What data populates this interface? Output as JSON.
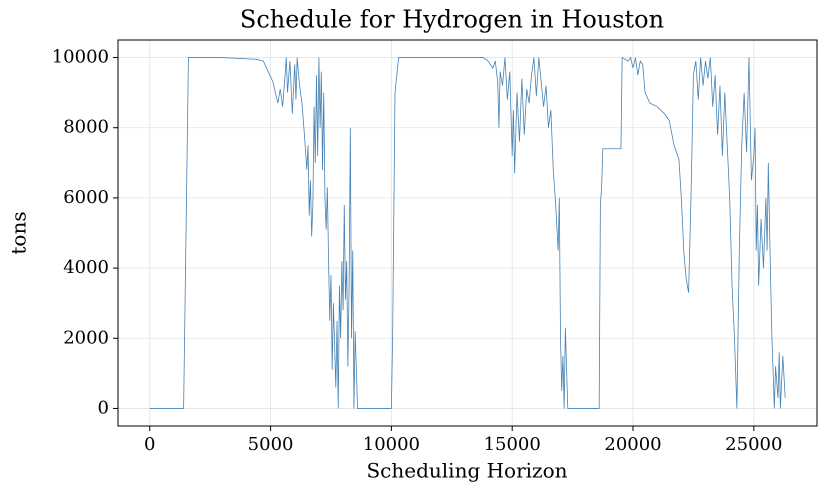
{
  "chart_data": {
    "type": "line",
    "title": "Schedule for Hydrogen in Houston",
    "xlabel": "Scheduling Horizon",
    "ylabel": "tons",
    "color": "#4682b4",
    "grid": true,
    "xlim": [
      -1315,
      27615
    ],
    "ylim": [
      -500,
      10500
    ],
    "xticks": [
      0,
      5000,
      10000,
      15000,
      20000,
      25000
    ],
    "yticks": [
      0,
      2000,
      4000,
      6000,
      8000,
      10000
    ],
    "x": [
      0,
      1400,
      1500,
      1600,
      3000,
      4400,
      4700,
      4900,
      5100,
      5300,
      5400,
      5500,
      5600,
      5650,
      5700,
      5800,
      5900,
      6000,
      6050,
      6100,
      6200,
      6300,
      6400,
      6500,
      6550,
      6600,
      6650,
      6700,
      6750,
      6800,
      6850,
      6900,
      6950,
      7000,
      7050,
      7100,
      7150,
      7200,
      7250,
      7300,
      7350,
      7400,
      7450,
      7500,
      7550,
      7600,
      7650,
      7700,
      7750,
      7800,
      7850,
      7900,
      7950,
      8000,
      8050,
      8100,
      8150,
      8200,
      8250,
      8300,
      8350,
      8400,
      8450,
      8500,
      8600,
      10000,
      10050,
      10150,
      10300,
      13800,
      14000,
      14200,
      14300,
      14400,
      14450,
      14500,
      14600,
      14700,
      14800,
      14900,
      15000,
      15050,
      15100,
      15200,
      15300,
      15400,
      15500,
      15600,
      15700,
      15800,
      15900,
      16000,
      16100,
      16200,
      16300,
      16400,
      16500,
      16600,
      16700,
      16800,
      16900,
      16950,
      17000,
      17050,
      17100,
      17150,
      17200,
      17300,
      18600,
      18650,
      18700,
      18750,
      19500,
      19550,
      19800,
      19900,
      20000,
      20100,
      20200,
      20300,
      20400,
      20500,
      20700,
      21000,
      21300,
      21500,
      21700,
      21900,
      22000,
      22100,
      22200,
      22300,
      22400,
      22500,
      22600,
      22700,
      22800,
      22900,
      23000,
      23100,
      23200,
      23300,
      23400,
      23500,
      23600,
      23700,
      23800,
      23900,
      24000,
      24100,
      24200,
      24300,
      24400,
      24500,
      24600,
      24700,
      24800,
      24900,
      25000,
      25050,
      25100,
      25150,
      25200,
      25300,
      25400,
      25500,
      25550,
      25600,
      25700,
      25750,
      25800,
      25850,
      25900,
      26000,
      26050,
      26100,
      26200,
      26300
    ],
    "values": [
      0,
      0,
      5000,
      10000,
      10000,
      9950,
      9900,
      9600,
      9300,
      8700,
      9100,
      8600,
      9500,
      10000,
      9000,
      9900,
      8400,
      9800,
      8800,
      10000,
      9200,
      8700,
      7800,
      6800,
      7500,
      5500,
      6500,
      4900,
      5800,
      8600,
      7000,
      9500,
      7200,
      10000,
      8000,
      9600,
      6800,
      9000,
      6000,
      5100,
      6300,
      4200,
      2500,
      3800,
      1100,
      3000,
      1800,
      600,
      2500,
      0,
      3500,
      2000,
      4200,
      2800,
      5800,
      3100,
      4200,
      1200,
      3500,
      8000,
      2000,
      4500,
      0,
      2200,
      0,
      0,
      2000,
      9000,
      10000,
      10000,
      9900,
      9700,
      9900,
      9300,
      8000,
      9600,
      9200,
      10000,
      8800,
      9600,
      7200,
      8500,
      6700,
      9000,
      7600,
      9400,
      7800,
      9100,
      8700,
      9500,
      10000,
      8900,
      10000,
      9300,
      8600,
      9200,
      8000,
      8500,
      6800,
      5800,
      4500,
      6000,
      2000,
      500,
      1500,
      0,
      2300,
      0,
      0,
      5800,
      6300,
      7400,
      7400,
      10000,
      9900,
      10000,
      9700,
      10000,
      9500,
      9900,
      9800,
      9000,
      8700,
      8600,
      8400,
      8200,
      7500,
      7100,
      6000,
      4500,
      3700,
      3300,
      6000,
      9500,
      9900,
      8800,
      10000,
      9200,
      9900,
      9400,
      10000,
      8600,
      9500,
      7800,
      9200,
      7200,
      9000,
      7500,
      6000,
      3500,
      2000,
      0,
      4500,
      7500,
      9000,
      7300,
      10000,
      6500,
      7200,
      8000,
      4500,
      5800,
      3500,
      5400,
      4000,
      6000,
      4500,
      7000,
      3500,
      2000,
      1000,
      0,
      1200,
      300,
      1600,
      0,
      1500,
      300
    ]
  }
}
